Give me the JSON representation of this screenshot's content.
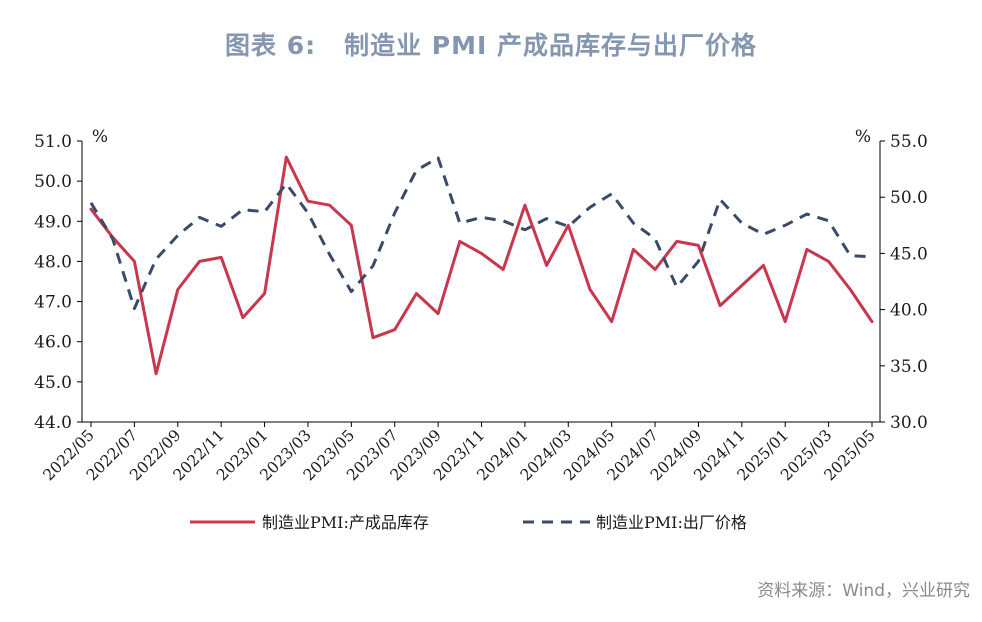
{
  "header": {
    "figure_no": "图表 6:",
    "title": "制造业 PMI 产成品库存与出厂价格"
  },
  "source": "资料来源：Wind，兴业研究",
  "colors": {
    "inventory": "#c8374d",
    "price": "#3b4b66",
    "title": "#8496b0"
  },
  "chart_data": {
    "type": "line",
    "title": "制造业 PMI 产成品库存与出厂价格",
    "left_unit": "%",
    "right_unit": "%",
    "y_left": {
      "min": 44.0,
      "max": 51.0,
      "step": 1.0,
      "ticks": [
        "44.0",
        "45.0",
        "46.0",
        "47.0",
        "48.0",
        "49.0",
        "50.0",
        "51.0"
      ]
    },
    "y_right": {
      "min": 30.0,
      "max": 55.0,
      "step": 5.0,
      "ticks": [
        "30.0",
        "35.0",
        "40.0",
        "45.0",
        "50.0",
        "55.0"
      ]
    },
    "x": [
      "2022/05",
      "2022/06",
      "2022/07",
      "2022/08",
      "2022/09",
      "2022/10",
      "2022/11",
      "2022/12",
      "2023/01",
      "2023/02",
      "2023/03",
      "2023/04",
      "2023/05",
      "2023/06",
      "2023/07",
      "2023/08",
      "2023/09",
      "2023/10",
      "2023/11",
      "2023/12",
      "2024/01",
      "2024/02",
      "2024/03",
      "2024/04",
      "2024/05",
      "2024/06",
      "2024/07",
      "2024/08",
      "2024/09",
      "2024/10",
      "2024/11",
      "2024/12",
      "2025/01",
      "2025/02",
      "2025/03",
      "2025/04",
      "2025/05"
    ],
    "x_tick_labels": [
      "2022/05",
      "2022/07",
      "2022/09",
      "2022/11",
      "2023/01",
      "2023/03",
      "2023/05",
      "2023/07",
      "2023/09",
      "2023/11",
      "2024/01",
      "2024/03",
      "2024/05",
      "2024/07",
      "2024/09",
      "2024/11",
      "2025/01",
      "2025/03",
      "2025/05"
    ],
    "legend_placement": "bottom",
    "series": [
      {
        "name": "制造业PMI:产成品库存",
        "axis": "left",
        "style": "solid",
        "values": [
          49.3,
          48.6,
          48.0,
          45.2,
          47.3,
          48.0,
          48.1,
          46.6,
          47.2,
          50.6,
          49.5,
          49.4,
          48.9,
          46.1,
          46.3,
          47.2,
          46.7,
          48.5,
          48.2,
          47.8,
          49.4,
          47.9,
          48.9,
          47.3,
          46.5,
          48.3,
          47.8,
          48.5,
          48.4,
          46.9,
          47.4,
          47.9,
          46.5,
          48.3,
          48.0,
          47.3,
          46.5
        ]
      },
      {
        "name": "制造业PMI:出厂价格",
        "axis": "right",
        "style": "dashed",
        "values": [
          49.5,
          46.3,
          40.1,
          44.5,
          46.6,
          48.2,
          47.4,
          48.9,
          48.7,
          51.2,
          48.6,
          44.9,
          41.6,
          43.9,
          48.6,
          52.4,
          53.5,
          47.7,
          48.2,
          47.9,
          47.1,
          48.1,
          47.4,
          49.1,
          50.3,
          47.7,
          46.3,
          42.0,
          44.3,
          49.8,
          47.7,
          46.7,
          47.5,
          48.5,
          47.9,
          44.8,
          44.7
        ]
      }
    ]
  }
}
